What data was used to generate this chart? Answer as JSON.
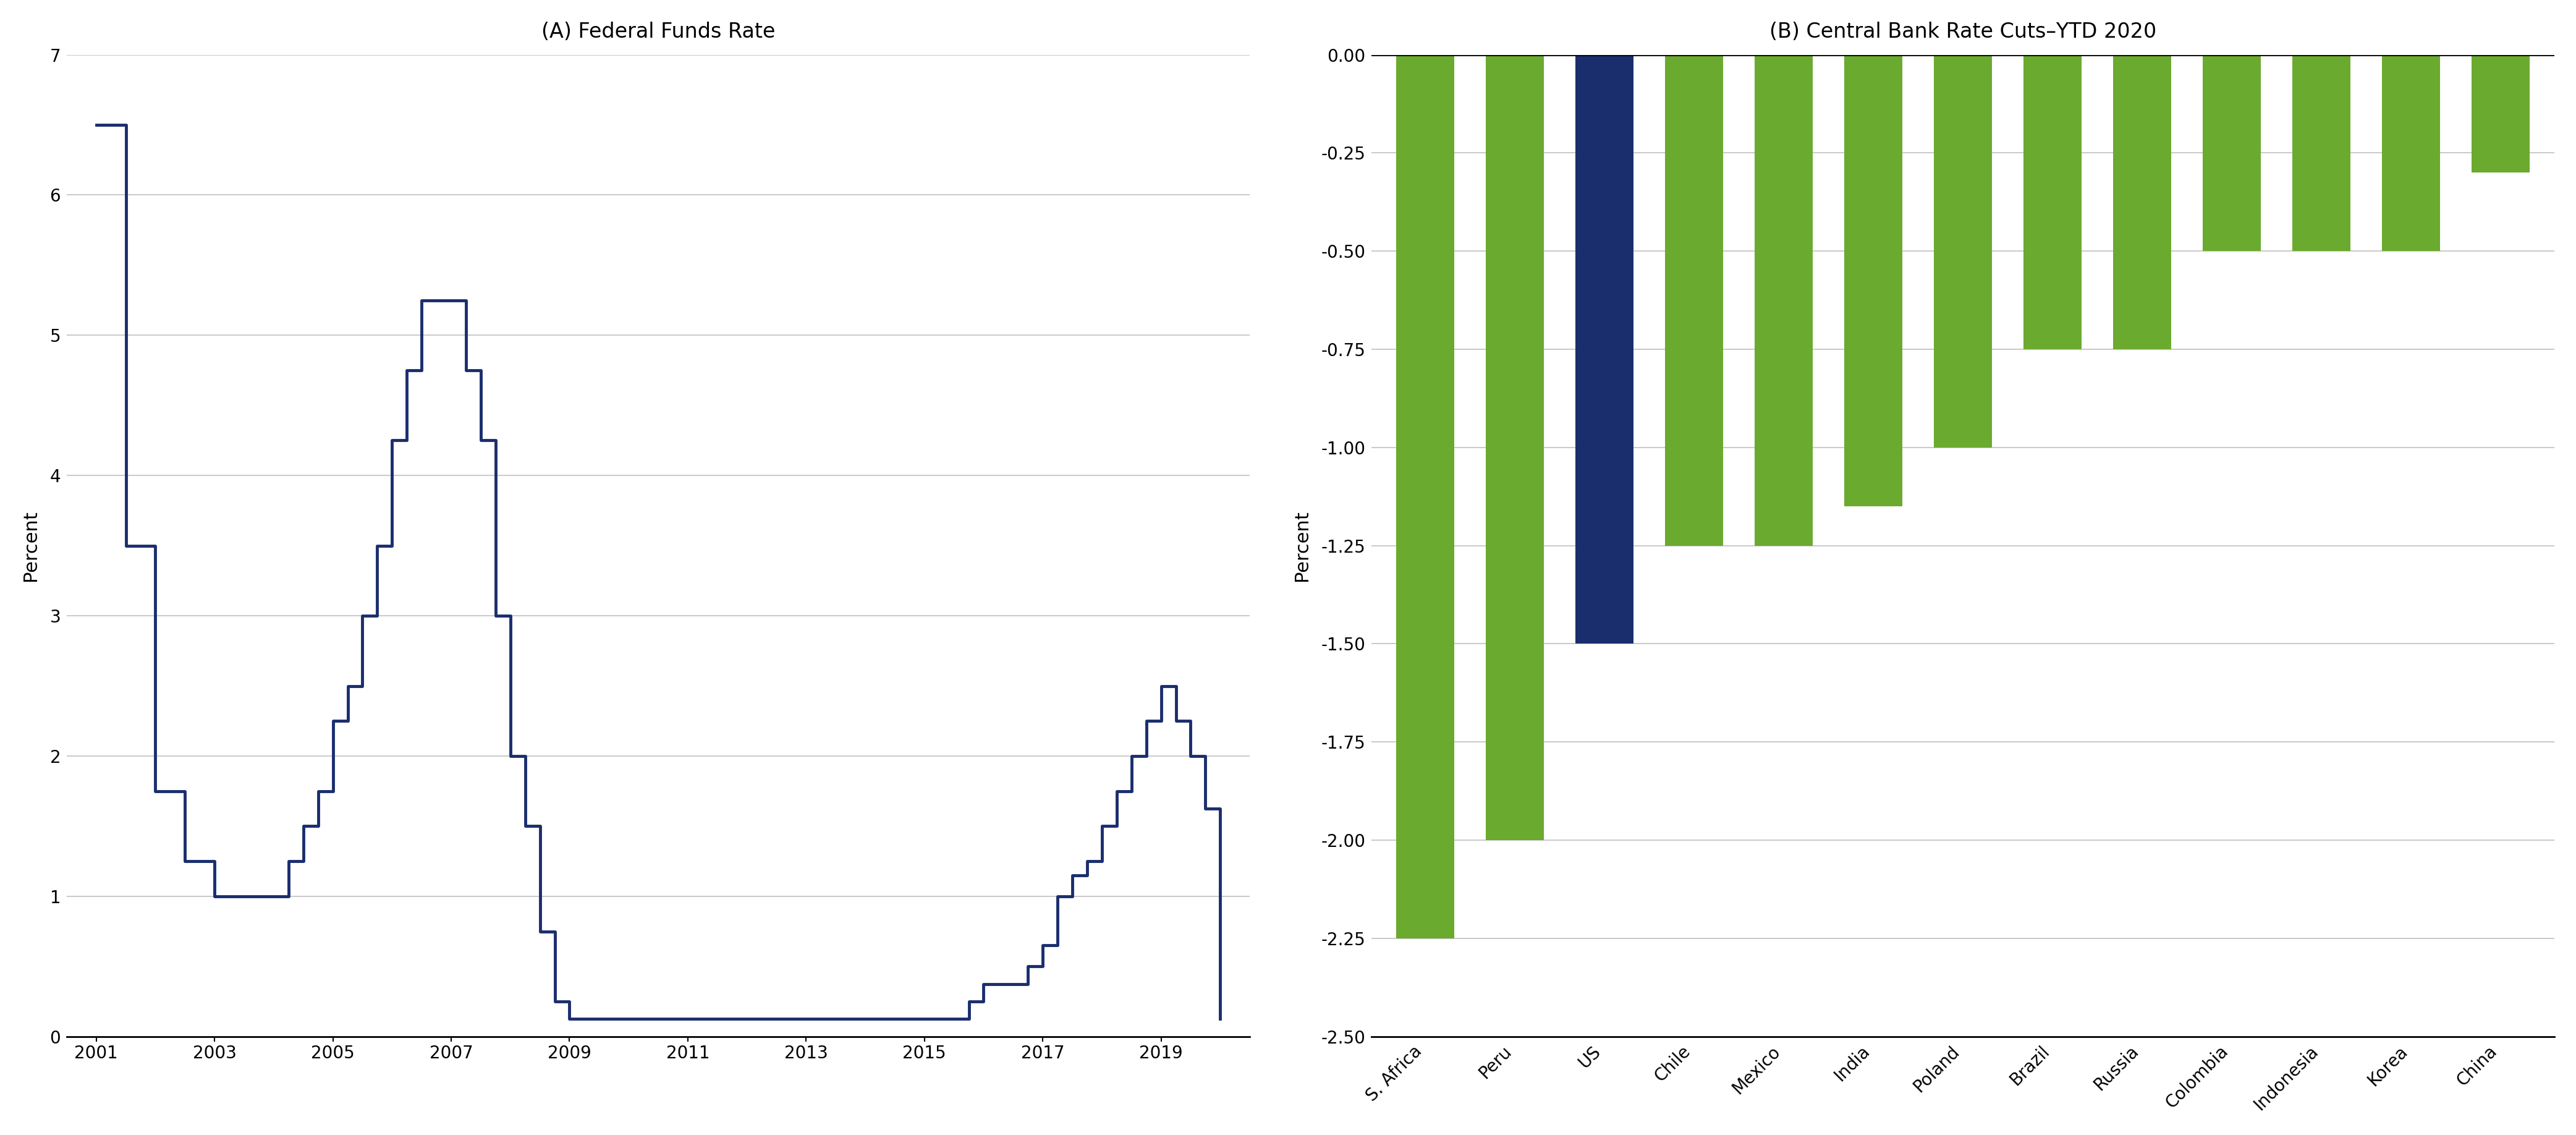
{
  "title_a": "(A) Federal Funds Rate",
  "title_b": "(B) Central Bank Rate Cuts–YTD 2020",
  "ylabel": "Percent",
  "line_color": "#1a2e6e",
  "line_width": 3.5,
  "ffr_x": [
    2001,
    2001.5,
    2002,
    2002.5,
    2003,
    2003.5,
    2004,
    2004.25,
    2004.5,
    2004.75,
    2005,
    2005.25,
    2005.5,
    2005.75,
    2006,
    2006.25,
    2006.5,
    2006.75,
    2007,
    2007.25,
    2007.5,
    2007.75,
    2008,
    2008.25,
    2008.5,
    2008.75,
    2009,
    2015,
    2015.75,
    2016,
    2016.75,
    2017,
    2017.25,
    2017.5,
    2017.75,
    2018,
    2018.25,
    2018.5,
    2018.75,
    2019,
    2019.25,
    2019.5,
    2019.75,
    2020
  ],
  "ffr_y": [
    6.5,
    3.5,
    1.75,
    1.25,
    1.0,
    1.0,
    1.0,
    1.25,
    1.5,
    1.75,
    2.25,
    2.5,
    3.0,
    3.5,
    4.25,
    4.75,
    5.25,
    5.25,
    5.25,
    4.75,
    4.25,
    3.0,
    2.0,
    1.5,
    0.75,
    0.25,
    0.125,
    0.125,
    0.25,
    0.375,
    0.5,
    0.65,
    1.0,
    1.15,
    1.25,
    1.5,
    1.75,
    2.0,
    2.25,
    2.5,
    2.25,
    2.0,
    1.625,
    0.125
  ],
  "bar_categories": [
    "S. Africa",
    "Peru",
    "US",
    "Chile",
    "Mexico",
    "India",
    "Poland",
    "Brazil",
    "Russia",
    "Colombia",
    "Indonesia",
    "Korea",
    "China"
  ],
  "bar_values": [
    -2.25,
    -2.0,
    -1.5,
    -1.25,
    -1.25,
    -1.15,
    -1.0,
    -0.75,
    -0.75,
    -0.5,
    -0.5,
    -0.5,
    -0.3
  ],
  "bar_colors": [
    "#6aaa2e",
    "#6aaa2e",
    "#1a2e6e",
    "#6aaa2e",
    "#6aaa2e",
    "#6aaa2e",
    "#6aaa2e",
    "#6aaa2e",
    "#6aaa2e",
    "#6aaa2e",
    "#6aaa2e",
    "#6aaa2e",
    "#6aaa2e"
  ],
  "ylim_a": [
    0,
    7
  ],
  "yticks_a": [
    0,
    1,
    2,
    3,
    4,
    5,
    6,
    7
  ],
  "xticks_a": [
    2001,
    2003,
    2005,
    2007,
    2009,
    2011,
    2013,
    2015,
    2017,
    2019
  ],
  "ylim_b": [
    -2.5,
    0.0
  ],
  "yticks_b": [
    0.0,
    -0.25,
    -0.5,
    -0.75,
    -1.0,
    -1.25,
    -1.5,
    -1.75,
    -2.0,
    -2.25,
    -2.5
  ],
  "background_color": "#ffffff",
  "grid_color": "#c0c0c0",
  "title_fontsize": 24,
  "label_fontsize": 22,
  "tick_fontsize": 20
}
